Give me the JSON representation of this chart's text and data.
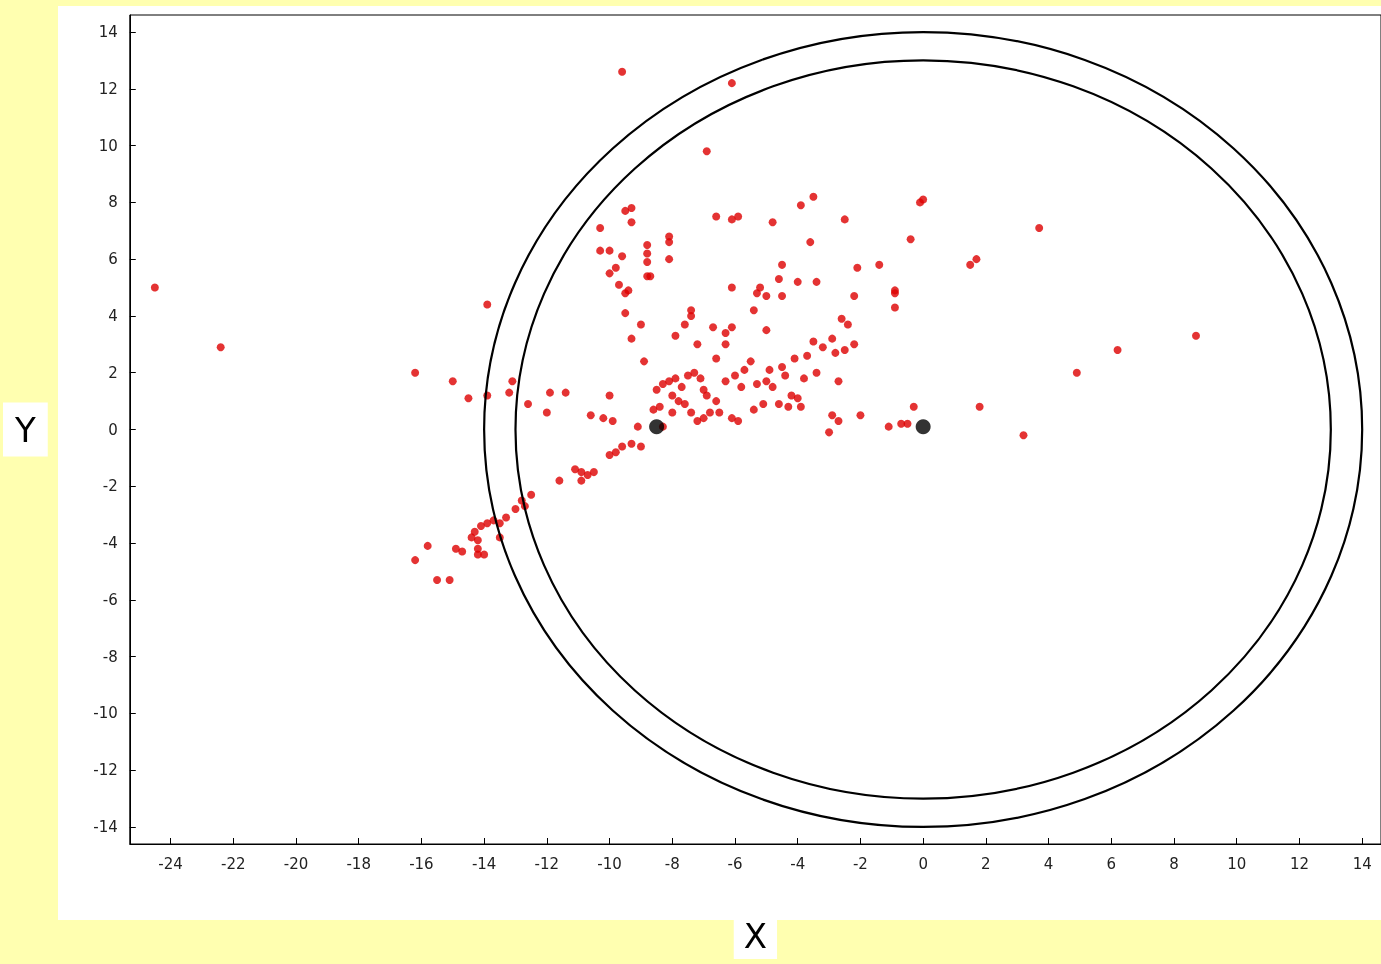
{
  "chart_data": {
    "type": "scatter",
    "xlabel": "X",
    "ylabel": "Y",
    "xlim": [
      -25.3,
      14.6
    ],
    "ylim": [
      -14.6,
      14.6
    ],
    "xticks": [
      -24,
      -22,
      -20,
      -18,
      -16,
      -14,
      -12,
      -10,
      -8,
      -6,
      -4,
      -2,
      0,
      2,
      4,
      6,
      8,
      10,
      12,
      14
    ],
    "yticks": [
      -14,
      -12,
      -10,
      -8,
      -6,
      -4,
      -2,
      0,
      2,
      4,
      6,
      8,
      10,
      12,
      14
    ],
    "grid": false,
    "marker": "circle",
    "series": [
      {
        "color": "#dd0000",
        "x": [
          -24.5,
          -22.4,
          -9.6,
          -6.1,
          -6.9,
          3.7,
          8.7,
          6.2,
          4.9,
          3.2,
          1.8,
          1.5,
          1.7,
          -0.1,
          0.0,
          -0.4,
          -0.9,
          -0.9,
          -0.9,
          -1.4,
          -2.1,
          -2.2,
          -2.5,
          -3.5,
          -3.9,
          -3.6,
          -3.4,
          -4.8,
          -5.9,
          -6.1,
          -6.6,
          -9.5,
          -9.3,
          -9.3,
          -10.3,
          -13.9,
          -16.2,
          -15.0,
          -14.5,
          -13.9,
          -13.1,
          -13.2,
          -12.6,
          -12.0,
          -11.9,
          -11.4,
          -10.6,
          -10.2,
          -9.9,
          -10.0,
          -8.3,
          -9.1,
          -0.7,
          -0.5,
          -1.1,
          -0.3,
          -2.7,
          -2.9,
          -2.0,
          -3.0,
          -9.0,
          -9.3,
          -9.6,
          -9.8,
          -10.0,
          -10.5,
          -10.7,
          -10.9,
          -11.1,
          -10.9,
          -11.6,
          -12.5,
          -12.8,
          -12.7,
          -13.0,
          -13.3,
          -13.5,
          -13.7,
          -13.9,
          -14.1,
          -14.3,
          -14.4,
          -14.2,
          -14.2,
          -14.2,
          -14.0,
          -14.7,
          -14.9,
          -15.8,
          -16.2,
          -15.5,
          -15.1,
          -13.5,
          -10.3,
          -10.0,
          -10.0,
          -9.8,
          -9.6,
          -9.7,
          -9.5,
          -9.4,
          -9.5,
          -9.3,
          -9.0,
          -8.9,
          -8.8,
          -8.8,
          -8.8,
          -8.7,
          -8.8,
          -8.1,
          -8.1,
          -8.1,
          -7.9,
          -7.4,
          -7.4,
          -7.6,
          -7.2,
          -6.7,
          -6.3,
          -6.1,
          -6.3,
          -6.1,
          -5.4,
          -5.3,
          -5.0,
          -5.2,
          -5.0,
          -4.6,
          -4.5,
          -4.0,
          -4.5,
          -3.5,
          -3.2,
          -2.9,
          -2.6,
          -2.4,
          -2.8,
          -2.5,
          -2.2,
          -2.7,
          -8.5,
          -8.3,
          -8.1,
          -7.9,
          -7.7,
          -7.5,
          -7.3,
          -7.1,
          -8.0,
          -7.8,
          -7.6,
          -8.4,
          -7.0,
          -6.9,
          -6.6,
          -6.8,
          -7.2,
          -7.0,
          -6.5,
          -6.1,
          -5.9,
          -6.3,
          -6.0,
          -5.7,
          -5.5,
          -5.3,
          -5.0,
          -4.8,
          -4.9,
          -4.5,
          -4.4,
          -4.2,
          -4.0,
          -4.6,
          -4.3,
          -3.9,
          -5.1,
          -5.4,
          -3.8,
          -3.4,
          -3.7,
          -4.1,
          -5.8,
          -6.6,
          -7.4,
          -8.0,
          -8.6
        ],
        "values": [
          5.0,
          2.9,
          12.6,
          12.2,
          9.8,
          7.1,
          3.3,
          2.8,
          2.0,
          -0.2,
          0.8,
          5.8,
          6.0,
          8.0,
          8.1,
          6.7,
          4.8,
          4.3,
          4.9,
          5.8,
          5.7,
          4.7,
          7.4,
          8.2,
          7.9,
          6.6,
          5.2,
          7.3,
          7.5,
          7.4,
          7.5,
          7.7,
          7.8,
          7.3,
          7.1,
          4.4,
          2.0,
          1.7,
          1.1,
          1.2,
          1.7,
          1.3,
          0.9,
          0.6,
          1.3,
          1.3,
          0.5,
          0.4,
          0.3,
          1.2,
          0.1,
          0.1,
          0.2,
          0.2,
          0.1,
          0.8,
          0.3,
          0.5,
          0.5,
          -0.1,
          -0.6,
          -0.5,
          -0.6,
          -0.8,
          -0.9,
          -1.5,
          -1.6,
          -1.5,
          -1.4,
          -1.8,
          -1.8,
          -2.3,
          -2.5,
          -2.7,
          -2.8,
          -3.1,
          -3.3,
          -3.2,
          -3.3,
          -3.4,
          -3.6,
          -3.8,
          -3.9,
          -4.2,
          -4.4,
          -4.4,
          -4.3,
          -4.2,
          -4.1,
          -4.6,
          -5.3,
          -5.3,
          -3.8,
          6.3,
          6.3,
          5.5,
          5.7,
          6.1,
          5.1,
          4.8,
          4.9,
          4.1,
          3.2,
          3.7,
          2.4,
          6.5,
          6.2,
          5.9,
          5.4,
          5.4,
          6.8,
          6.6,
          6.0,
          3.3,
          4.0,
          4.2,
          3.7,
          3.0,
          3.6,
          3.4,
          3.6,
          3.0,
          5.0,
          4.2,
          4.8,
          4.7,
          5.0,
          3.5,
          5.3,
          4.7,
          5.2,
          5.8,
          3.1,
          2.9,
          3.2,
          3.9,
          3.7,
          2.7,
          2.8,
          3.0,
          1.7,
          1.4,
          1.6,
          1.7,
          1.8,
          1.5,
          1.9,
          2.0,
          1.8,
          1.2,
          1.0,
          0.9,
          0.8,
          1.4,
          1.2,
          1.0,
          0.6,
          0.3,
          0.4,
          0.6,
          0.4,
          0.3,
          1.7,
          1.9,
          2.1,
          2.4,
          1.6,
          1.7,
          1.5,
          2.1,
          2.2,
          1.9,
          1.2,
          1.1,
          0.9,
          0.8,
          0.8,
          0.9,
          0.7,
          1.8,
          2.0,
          2.6,
          2.5,
          1.5,
          2.5,
          0.6,
          0.6,
          0.7
        ]
      },
      {
        "color": "#000000",
        "x": [
          -8.5,
          0
        ],
        "values": [
          0.1,
          0.1
        ]
      }
    ]
  }
}
